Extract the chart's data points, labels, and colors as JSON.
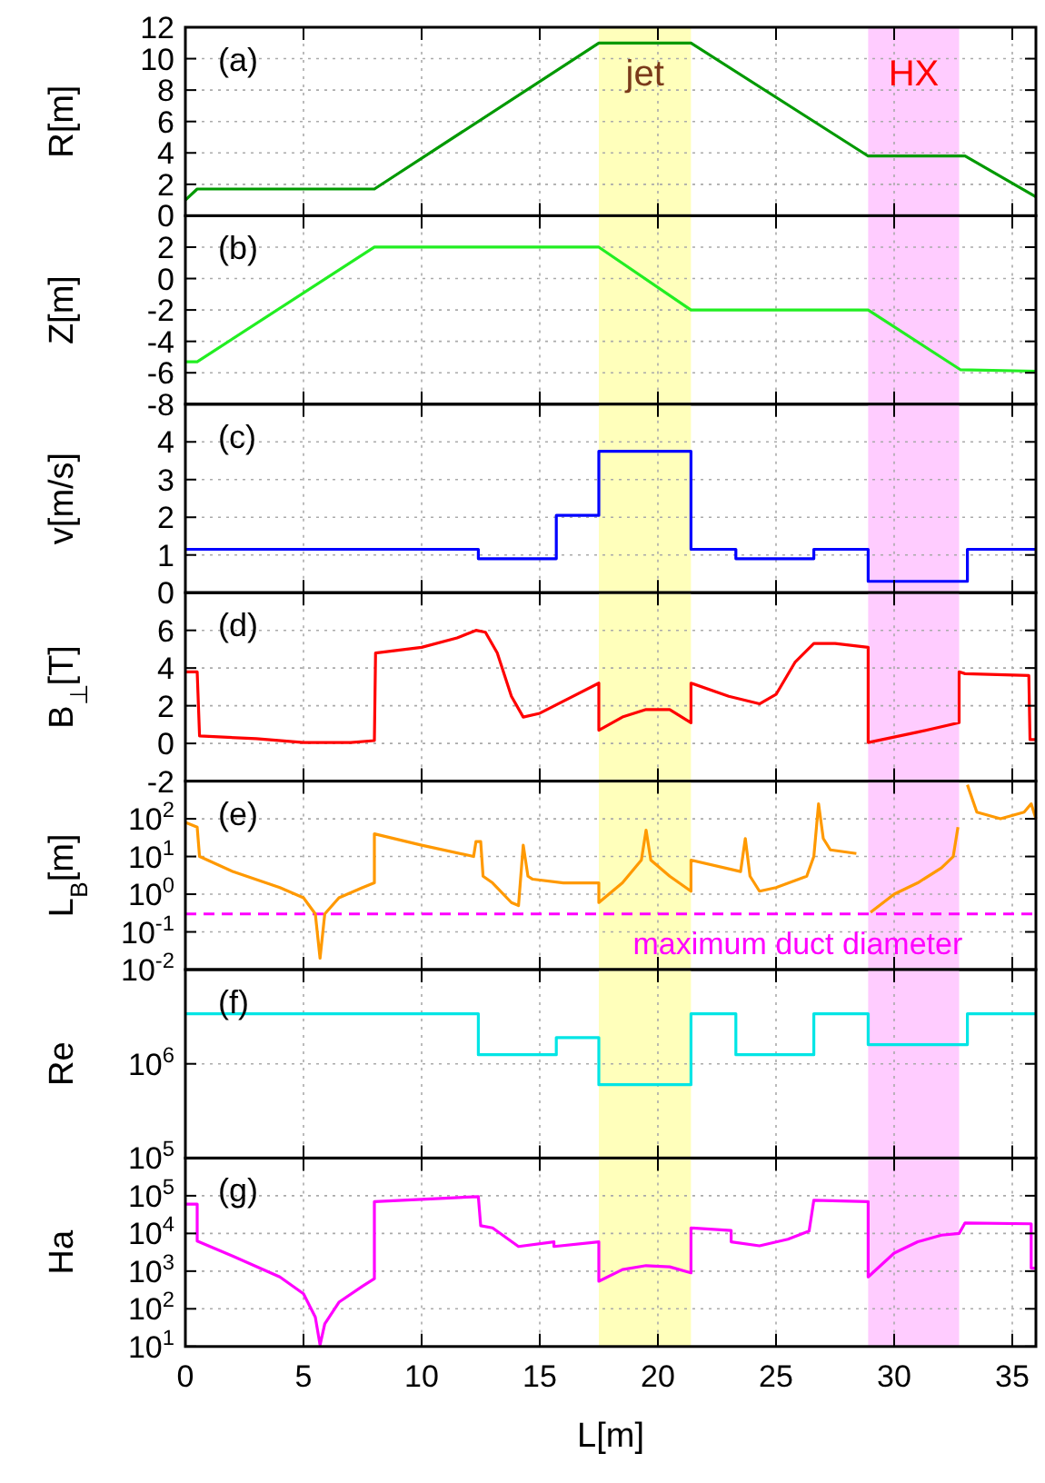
{
  "chart_data": [
    {
      "type": "line",
      "ylabel": "R[m]",
      "annotations": [
        "(a)"
      ],
      "xlim": [
        0,
        36
      ],
      "xticks": [
        0,
        5,
        10,
        15,
        20,
        25,
        30,
        35
      ],
      "ylim": [
        0,
        12
      ],
      "yticks": [
        0,
        2,
        4,
        6,
        8,
        10,
        12
      ],
      "grid": true,
      "tick_labels": "y",
      "bands": [
        {
          "axis": "x",
          "from": 17.5,
          "to": 21.4,
          "label": "jet",
          "color": "#ffffbb"
        },
        {
          "axis": "x",
          "from": 28.9,
          "to": 32.75,
          "label": "HX",
          "color": "#ffccff"
        }
      ],
      "series": [
        {
          "color": "#009900",
          "x": [
            0,
            0.5,
            8,
            17.5,
            21.4,
            28.9,
            33,
            36
          ],
          "values": [
            1,
            1.7,
            1.7,
            11,
            11,
            3.8,
            3.8,
            1.2
          ]
        }
      ]
    },
    {
      "type": "line",
      "ylabel": "Z[m]",
      "annotations": [
        "(b)"
      ],
      "xlim": [
        0,
        36
      ],
      "xticks": [
        0,
        5,
        10,
        15,
        20,
        25,
        30,
        35
      ],
      "ylim": [
        -8,
        4
      ],
      "yticks": [
        -8,
        -6,
        -4,
        -2,
        0,
        2
      ],
      "grid": true,
      "tick_labels": "y",
      "bands": [
        {
          "axis": "x",
          "from": 17.5,
          "to": 21.4,
          "color": "#ffffbb"
        },
        {
          "axis": "x",
          "from": 28.9,
          "to": 32.75,
          "color": "#ffccff"
        }
      ],
      "series": [
        {
          "color": "#22ee22",
          "x": [
            0,
            0.5,
            8,
            17.5,
            21.4,
            28.9,
            32.8,
            36
          ],
          "values": [
            -5.3,
            -5.3,
            2,
            2,
            -2,
            -2,
            -5.8,
            -5.9
          ]
        }
      ]
    },
    {
      "type": "line",
      "ylabel": "v[m/s]",
      "annotations": [
        "(c)"
      ],
      "xlim": [
        0,
        36
      ],
      "xticks": [
        0,
        5,
        10,
        15,
        20,
        25,
        30,
        35
      ],
      "ylim": [
        0,
        5
      ],
      "yticks": [
        0,
        1,
        2,
        3,
        4
      ],
      "grid": true,
      "tick_labels": "y",
      "bands": [
        {
          "axis": "x",
          "from": 17.5,
          "to": 21.4,
          "color": "#ffffbb"
        },
        {
          "axis": "x",
          "from": 28.9,
          "to": 32.75,
          "color": "#ffccff"
        }
      ],
      "series": [
        {
          "color": "#0000ff",
          "x": [
            0,
            12.4,
            12.4,
            15.7,
            15.7,
            17.5,
            17.5,
            21.4,
            21.4,
            23.3,
            23.3,
            26.6,
            26.6,
            28.9,
            28.9,
            33.1,
            33.1,
            36
          ],
          "values": [
            1.15,
            1.15,
            0.9,
            0.9,
            2.05,
            2.05,
            3.75,
            3.75,
            1.15,
            1.15,
            0.9,
            0.9,
            1.15,
            1.15,
            0.3,
            0.3,
            1.15,
            1.15
          ]
        }
      ]
    },
    {
      "type": "line",
      "ylabel": "B$_{⊥}$[T]",
      "annotations": [
        "(d)"
      ],
      "xlim": [
        0,
        36
      ],
      "xticks": [
        0,
        5,
        10,
        15,
        20,
        25,
        30,
        35
      ],
      "ylim": [
        -2,
        8
      ],
      "yticks": [
        -2,
        0,
        2,
        4,
        6
      ],
      "grid": true,
      "tick_labels": "y",
      "bands": [
        {
          "axis": "x",
          "from": 17.5,
          "to": 21.4,
          "color": "#ffffbb"
        },
        {
          "axis": "x",
          "from": 28.9,
          "to": 32.75,
          "color": "#ffccff"
        }
      ],
      "series": [
        {
          "color": "#ff0000",
          "x": [
            0,
            0.5,
            0.6,
            3,
            5,
            7,
            8,
            8.05,
            10,
            11.5,
            12.3,
            12.7,
            13.2,
            13.8,
            14.3,
            15,
            17.5,
            17.5,
            18.5,
            19.5,
            20.5,
            21.4,
            21.4,
            23,
            24.3,
            25,
            25.8,
            26.6,
            27.5,
            28.9,
            28.9,
            31,
            32.75,
            32.75,
            33,
            35.7,
            35.75,
            36
          ],
          "values": [
            3.8,
            3.8,
            0.4,
            0.25,
            0.05,
            0.05,
            0.15,
            4.8,
            5.1,
            5.6,
            6,
            5.9,
            4.8,
            2.5,
            1.4,
            1.6,
            3.2,
            0.7,
            1.4,
            1.8,
            1.8,
            1.1,
            3.2,
            2.5,
            2.1,
            2.6,
            4.3,
            5.3,
            5.3,
            5.1,
            0.05,
            0.6,
            1.1,
            3.8,
            3.7,
            3.6,
            0.2,
            0.2
          ]
        }
      ]
    },
    {
      "type": "line",
      "ylabel": "L$_{B}$[m]",
      "annotations": [
        "(e)"
      ],
      "xlim": [
        0,
        36
      ],
      "xticks": [
        0,
        5,
        10,
        15,
        20,
        25,
        30,
        35
      ],
      "ylim": [
        0.01,
        1000
      ],
      "log": true,
      "yticks": [
        {
          "value": 0.01,
          "label": "10$^{-2}$"
        },
        {
          "value": 0.1,
          "label": "10$^{-1}$"
        },
        {
          "value": 1,
          "label": "10$^{0}$"
        },
        {
          "value": 10,
          "label": "10$^{1}$"
        },
        {
          "value": 100,
          "label": "10$^{2}$"
        }
      ],
      "grid": true,
      "tick_labels": "y",
      "bands": [
        {
          "axis": "x",
          "from": 17.5,
          "to": 21.4,
          "color": "#ffffbb"
        },
        {
          "axis": "x",
          "from": 28.9,
          "to": 32.75,
          "color": "#ffccff"
        }
      ],
      "ref_lines": [
        {
          "axis": "y",
          "value": 0.3,
          "label": "maximum duct diameter",
          "color": "#ff00ff",
          "line_style": "dashed"
        }
      ],
      "series": [
        {
          "color": "#ff9900",
          "x": [
            0,
            0.5,
            0.6,
            2,
            4,
            5,
            5.5,
            5.7,
            5.9,
            6.5,
            7.5,
            8,
            8,
            10,
            12.2,
            12.3,
            12.5,
            12.6,
            13,
            13.8,
            14.1,
            14.3,
            14.5,
            14.7,
            16,
            17.5,
            17.5,
            18.5,
            19.3,
            19.5,
            19.7,
            20.5,
            21.4,
            21.4,
            23.5,
            23.7,
            23.9,
            24.3,
            25,
            26.3,
            26.6,
            26.8,
            27,
            27.3,
            28.4,
            28.6,
            29,
            30,
            31,
            32,
            32.5,
            32.7,
            32.8,
            33.1,
            33.5,
            34.5,
            35.5,
            35.8,
            36
          ],
          "values": [
            80,
            60,
            10,
            4,
            1.5,
            0.8,
            0.3,
            0.02,
            0.3,
            0.8,
            1.5,
            2,
            40,
            20,
            10,
            25,
            25,
            3,
            2,
            0.6,
            0.5,
            20,
            3,
            2.5,
            2,
            2,
            0.6,
            2,
            8,
            50,
            8,
            3,
            1.2,
            8,
            4,
            30,
            3,
            1.2,
            1.5,
            3,
            10,
            250,
            30,
            15,
            12,
            null,
            0.33,
            1,
            2,
            5,
            10,
            60,
            null,
            800,
            150,
            100,
            150,
            250,
            100
          ]
        }
      ]
    },
    {
      "type": "line",
      "ylabel": "Re",
      "annotations": [
        "(f)"
      ],
      "xlim": [
        0,
        36
      ],
      "xticks": [
        0,
        5,
        10,
        15,
        20,
        25,
        30,
        35
      ],
      "ylim": [
        100000,
        10000000
      ],
      "log": true,
      "yticks": [
        {
          "value": 100000,
          "label": "10$^{5}$"
        },
        {
          "value": 1000000,
          "label": "10$^{6}$"
        }
      ],
      "grid": true,
      "tick_labels": "y",
      "bands": [
        {
          "axis": "x",
          "from": 17.5,
          "to": 21.4,
          "color": "#ffffbb"
        },
        {
          "axis": "x",
          "from": 28.9,
          "to": 32.75,
          "color": "#ffccff"
        }
      ],
      "series": [
        {
          "color": "#00e5e5",
          "x": [
            0,
            12.4,
            12.4,
            15.7,
            15.7,
            17.5,
            17.5,
            21.4,
            21.4,
            23.3,
            23.3,
            26.6,
            26.6,
            28.9,
            28.9,
            33.1,
            33.1,
            36
          ],
          "values": [
            3400000,
            3400000,
            1250000,
            1250000,
            1900000,
            1900000,
            600000,
            600000,
            3400000,
            3400000,
            1250000,
            1250000,
            3400000,
            3400000,
            1600000,
            1600000,
            3400000,
            3400000
          ]
        }
      ]
    },
    {
      "type": "line",
      "ylabel": "Ha",
      "xlabel": "L[m]",
      "annotations": [
        "(g)"
      ],
      "xlim": [
        0,
        36
      ],
      "xticks": [
        0,
        5,
        10,
        15,
        20,
        25,
        30,
        35
      ],
      "ylim": [
        10,
        1000000
      ],
      "log": true,
      "yticks": [
        {
          "value": 10,
          "label": "10$^{1}$"
        },
        {
          "value": 100,
          "label": "10$^{2}$"
        },
        {
          "value": 1000,
          "label": "10$^{3}$"
        },
        {
          "value": 10000,
          "label": "10$^{4}$"
        },
        {
          "value": 100000,
          "label": "10$^{5}$"
        }
      ],
      "grid": true,
      "bands": [
        {
          "axis": "x",
          "from": 17.5,
          "to": 21.4,
          "color": "#ffffbb"
        },
        {
          "axis": "x",
          "from": 28.9,
          "to": 32.75,
          "color": "#ffccff"
        }
      ],
      "series": [
        {
          "color": "#ff00ff",
          "x": [
            0,
            0.5,
            0.5,
            2,
            4,
            5,
            5.5,
            5.7,
            5.9,
            6.5,
            7.5,
            8,
            8,
            12.4,
            12.5,
            13,
            14.1,
            15.6,
            15.6,
            17.5,
            17.5,
            18.5,
            19.5,
            20.5,
            21.4,
            21.4,
            23.1,
            23.1,
            24.3,
            25.5,
            26.4,
            26.6,
            28.9,
            28.9,
            30,
            31,
            32,
            32.75,
            33,
            35.8,
            35.8,
            36
          ],
          "values": [
            60000,
            60000,
            6300,
            2500,
            700,
            250,
            60,
            11,
            40,
            150,
            400,
            630,
            70000,
            95000,
            16000,
            14000,
            4500,
            6000,
            4500,
            6000,
            540,
            1100,
            1400,
            1300,
            900,
            14000,
            12000,
            6000,
            4700,
            7000,
            11500,
            76000,
            70000,
            700,
            3000,
            6000,
            9000,
            10000,
            19000,
            18000,
            1200,
            1200
          ]
        }
      ]
    }
  ]
}
